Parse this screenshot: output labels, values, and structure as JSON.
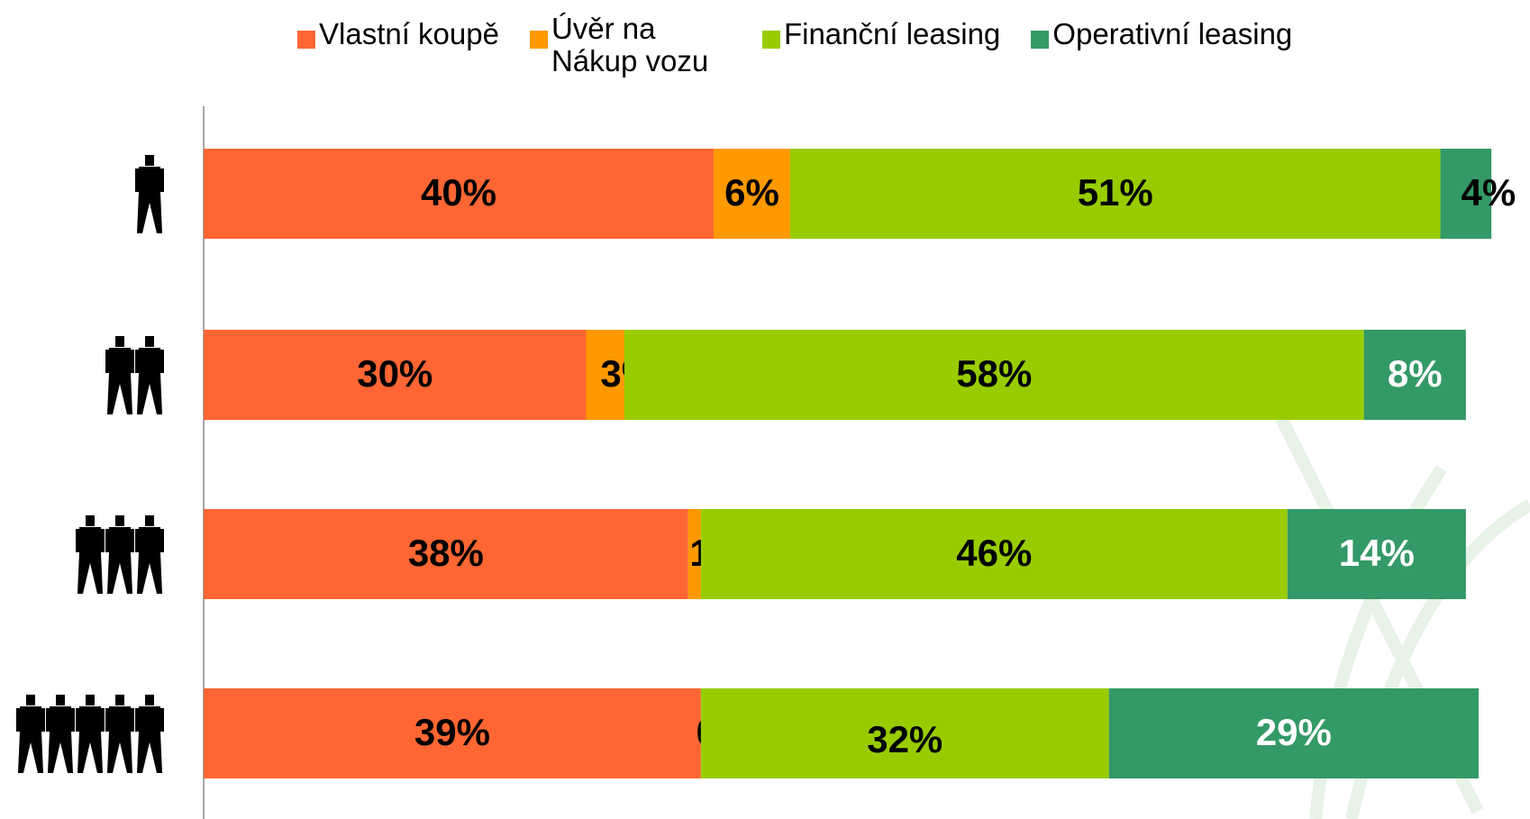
{
  "chart_data": {
    "type": "stacked_barh",
    "categories": [
      null,
      null,
      null,
      null
    ],
    "series": [
      {
        "name": "Vlastní koupě",
        "color": "#ff6633",
        "values": [
          40,
          30,
          38,
          39
        ],
        "value_labels": [
          "40%",
          "30%",
          "38%",
          "39%"
        ]
      },
      {
        "name": "Úvěr na Nákup vozu",
        "color": "#ff9900",
        "values": [
          6,
          3,
          1,
          0
        ],
        "value_labels": [
          "6%",
          "3%",
          "1%",
          "0%"
        ]
      },
      {
        "name": "Finanční leasing",
        "color": "#99cc00",
        "values": [
          51,
          58,
          46,
          32
        ],
        "value_labels": [
          "51%",
          "58%",
          "46%",
          "32%"
        ]
      },
      {
        "name": "Operativní leasing",
        "color": "#339966",
        "values": [
          4,
          8,
          14,
          29
        ],
        "value_labels": [
          "4%",
          "8%",
          "14%",
          "29%"
        ]
      }
    ],
    "xlim": [
      0,
      100
    ]
  }
}
